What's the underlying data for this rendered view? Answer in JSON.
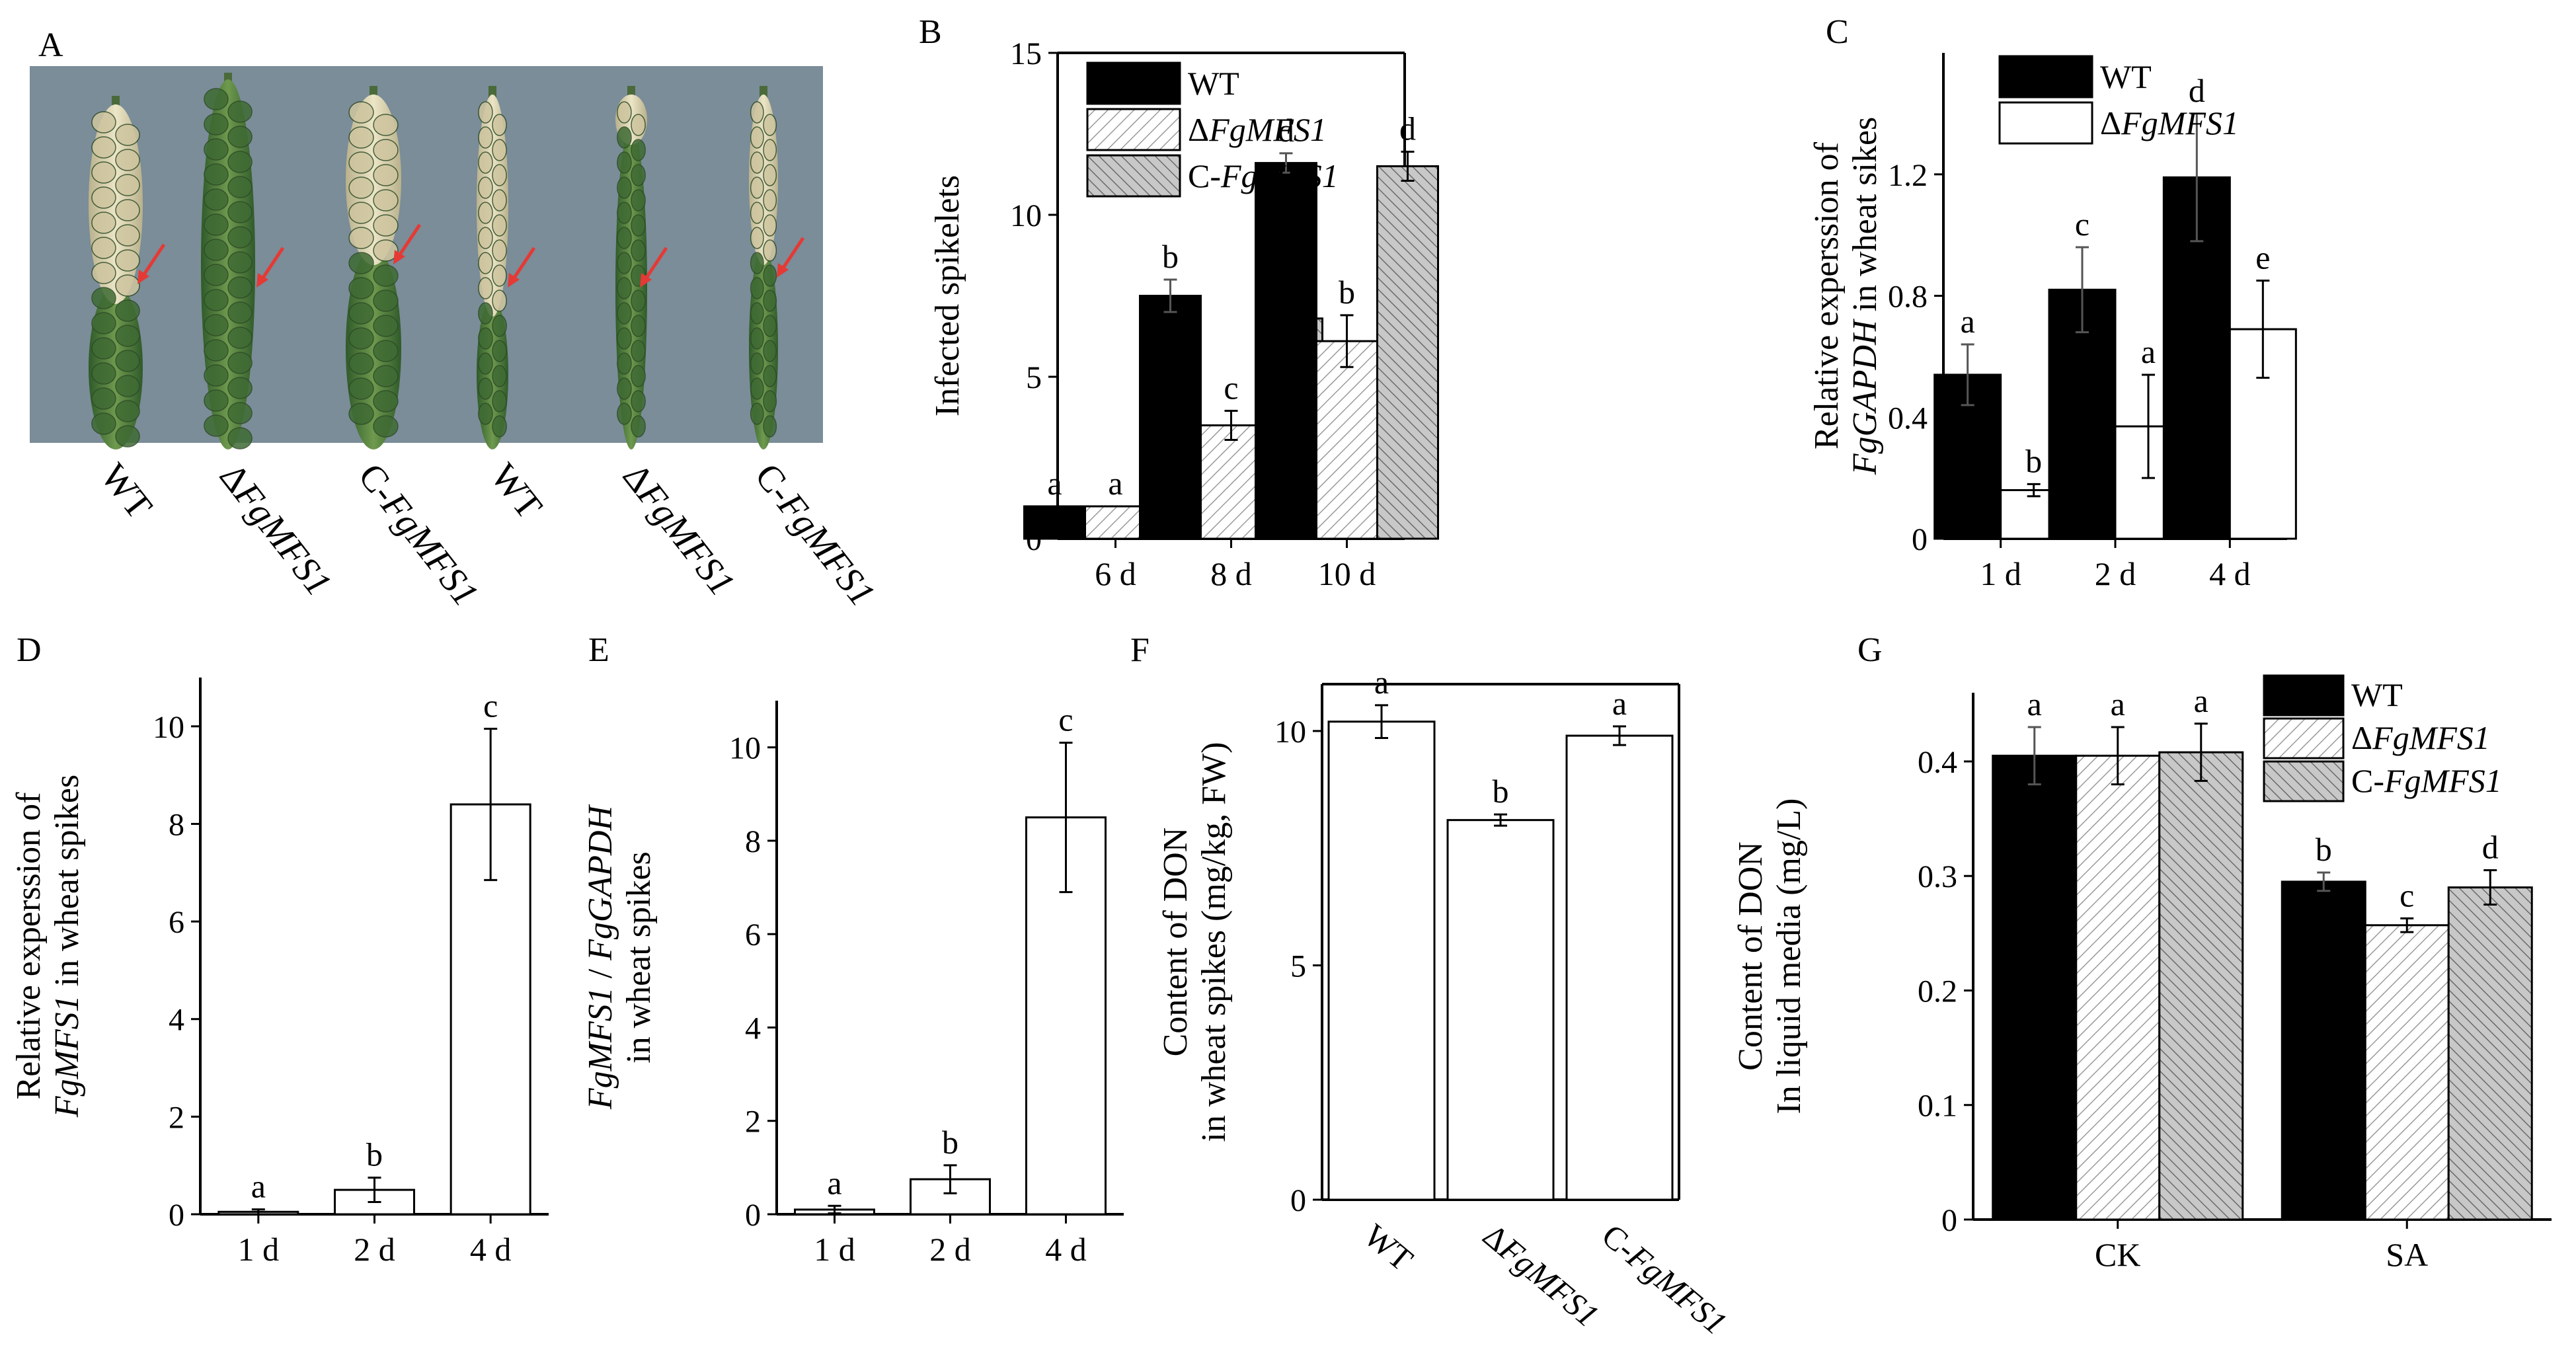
{
  "colors": {
    "wt": "#000000",
    "mutant": "#ffffff",
    "comp": "#c8c8c8",
    "arrow": "#e53935",
    "photo_bg": "#7a8d98"
  },
  "panel_a": {
    "letter": "A",
    "labels": [
      "WT",
      "ΔFgMFS1",
      "C-FgMFS1",
      "WT",
      "ΔFgMFS1",
      "C-FgMFS1"
    ]
  },
  "chart_data": [
    {
      "panel": "B",
      "type": "bar",
      "categories": [
        "6 d",
        "8 d",
        "10 d"
      ],
      "series": [
        {
          "name": "WT",
          "values": [
            1.0,
            7.5,
            11.6
          ],
          "errors": [
            0,
            0.5,
            0.3
          ],
          "letters": [
            "a",
            "b",
            "d"
          ]
        },
        {
          "name": "ΔFgMFS1",
          "values": [
            1.0,
            3.5,
            6.1
          ],
          "errors": [
            0,
            0.45,
            0.8
          ],
          "letters": [
            "a",
            "c",
            "b"
          ]
        },
        {
          "name": "C-FgMFS1",
          "values": [
            1.0,
            6.8,
            11.5
          ],
          "errors": [
            0,
            0.25,
            0.45
          ],
          "letters": [
            "a",
            "b",
            "d"
          ]
        }
      ],
      "ylabel": [
        "Infected spikelets"
      ],
      "ylim": [
        0,
        15
      ],
      "yticks": [
        0,
        5,
        10,
        15
      ],
      "legend": "top-left"
    },
    {
      "panel": "C",
      "type": "bar",
      "categories": [
        "1 d",
        "2 d",
        "4 d"
      ],
      "series": [
        {
          "name": "WT",
          "values": [
            0.54,
            0.82,
            1.19
          ],
          "errors": [
            0.1,
            0.14,
            0.21
          ],
          "letters": [
            "a",
            "c",
            "d"
          ]
        },
        {
          "name": "ΔFgMFS1",
          "values": [
            0.16,
            0.37,
            0.69
          ],
          "errors": [
            0.02,
            0.17,
            0.16
          ],
          "letters": [
            "b",
            "a",
            "e"
          ]
        }
      ],
      "ylabel": [
        "Relative experssion of",
        "FgGAPDH in wheat sikes"
      ],
      "ylim": [
        0,
        1.6
      ],
      "yticks": [
        0,
        0.4,
        0.8,
        1.2
      ],
      "legend": "top-left"
    },
    {
      "panel": "D",
      "type": "bar",
      "categories": [
        "1 d",
        "2 d",
        "4 d"
      ],
      "series": [
        {
          "name": "FgMFS1",
          "values": [
            0.05,
            0.5,
            8.4
          ],
          "errors": [
            0.05,
            0.25,
            1.55
          ],
          "letters": [
            "a",
            "b",
            "c"
          ]
        }
      ],
      "ylabel": [
        "Relative experssion of",
        "FgMFS1 in wheat spikes"
      ],
      "ylim": [
        0,
        11
      ],
      "yticks": [
        0,
        2,
        4,
        6,
        8,
        10
      ]
    },
    {
      "panel": "E",
      "type": "bar",
      "categories": [
        "1 d",
        "2 d",
        "4 d"
      ],
      "series": [
        {
          "name": "FgMFS1 / FgGAPDH",
          "values": [
            0.1,
            0.75,
            8.5
          ],
          "errors": [
            0.08,
            0.3,
            1.6
          ],
          "letters": [
            "a",
            "b",
            "c"
          ]
        }
      ],
      "ylabel": [
        "FgMFS1 / FgGAPDH",
        "in wheat spikes"
      ],
      "ylim": [
        0,
        11
      ],
      "yticks": [
        0,
        2,
        4,
        6,
        8,
        10
      ]
    },
    {
      "panel": "F",
      "type": "bar",
      "categories": [
        "WT",
        "ΔFgMFS1",
        "C-FgMFS1"
      ],
      "series": [
        {
          "name": "DON",
          "values": [
            10.2,
            8.1,
            9.9
          ],
          "errors": [
            0.35,
            0.12,
            0.2
          ],
          "letters": [
            "a",
            "b",
            "a"
          ]
        }
      ],
      "ylabel": [
        "Content of DON",
        "in wheat spikes (mg/kg, FW)"
      ],
      "ylim": [
        0,
        11
      ],
      "yticks": [
        0,
        5,
        10
      ]
    },
    {
      "panel": "G",
      "type": "bar",
      "categories": [
        "CK",
        "SA"
      ],
      "series": [
        {
          "name": "WT",
          "values": [
            0.405,
            0.295
          ],
          "errors": [
            0.025,
            0.008
          ],
          "letters": [
            "a",
            "b"
          ]
        },
        {
          "name": "ΔFgMFS1",
          "values": [
            0.405,
            0.257
          ],
          "errors": [
            0.025,
            0.006
          ],
          "letters": [
            "a",
            "c"
          ]
        },
        {
          "name": "C-FgMFS1",
          "values": [
            0.408,
            0.29
          ],
          "errors": [
            0.025,
            0.015
          ],
          "letters": [
            "a",
            "d"
          ]
        }
      ],
      "ylabel": [
        "Content of DON",
        "In liquid media (mg/L)"
      ],
      "ylim": [
        0,
        0.46
      ],
      "yticks": [
        0,
        0.1,
        0.2,
        0.3,
        0.4
      ],
      "legend": "top-right"
    }
  ]
}
